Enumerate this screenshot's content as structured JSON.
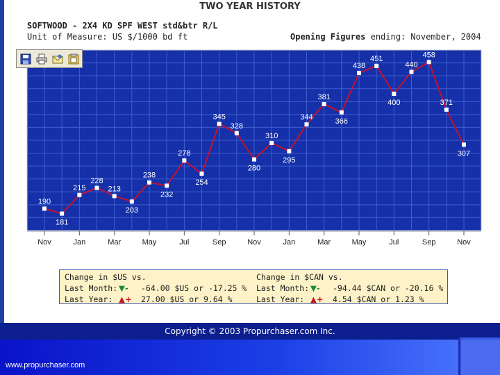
{
  "header": {
    "title": "TWO YEAR HISTORY",
    "product": "SOFTWOOD - 2X4 KD SPF WEST std&btr R/L",
    "unit": "Unit of Measure: US $/1000 bd ft",
    "opening_label": "Opening Figures",
    "opening_value": " ending: November, 2004"
  },
  "toolbar": {
    "buttons": [
      {
        "name": "save-icon"
      },
      {
        "name": "print-icon"
      },
      {
        "name": "email-icon"
      },
      {
        "name": "copy-icon"
      }
    ]
  },
  "chart_data": {
    "type": "line",
    "title": "TWO YEAR HISTORY",
    "xlabel": "",
    "ylabel": "",
    "grid": true,
    "x": [
      "Nov",
      "Dec",
      "Jan",
      "Feb",
      "Mar",
      "Apr",
      "May",
      "Jun",
      "Jul",
      "Aug",
      "Sep",
      "Oct",
      "Nov",
      "Dec",
      "Jan",
      "Feb",
      "Mar",
      "Apr",
      "May",
      "Jun",
      "Jul",
      "Aug",
      "Sep",
      "Oct",
      "Nov"
    ],
    "tick_labels": [
      "Nov",
      "Jan",
      "Mar",
      "May",
      "Jul",
      "Sep",
      "Nov",
      "Jan",
      "Mar",
      "May",
      "Jul",
      "Sep",
      "Nov"
    ],
    "series": [
      {
        "values": [
          190,
          181,
          215,
          228,
          213,
          203,
          238,
          232,
          278,
          254,
          345,
          328,
          280,
          310,
          295,
          344,
          381,
          366,
          438,
          451,
          400,
          440,
          458,
          371,
          307
        ],
        "color": "#c8102e"
      }
    ],
    "ylim": [
      150,
      480
    ],
    "colors": {
      "plot_bg": "#1530a8",
      "grid": "#3f5fcf",
      "line": "#c8102e",
      "marker": "#ffffff"
    }
  },
  "stats": {
    "us": {
      "heading": "Change in $US vs.",
      "last_month_label": "Last Month:",
      "last_month_arrow": "▼-",
      "last_month_value": "-64.00 $US or -17.25 %",
      "last_year_label": "Last Year:",
      "last_year_arrow": "▲+",
      "last_year_value": "27.00 $US or 9.64 %"
    },
    "can": {
      "heading": "Change in $CAN vs.",
      "last_month_label": "Last Month:",
      "last_month_arrow": "▼-",
      "last_month_value": "-94.44 $CAN or -20.16 %",
      "last_year_label": "Last Year:",
      "last_year_arrow": "▲+",
      "last_year_value": "4.54 $CAN or 1.23 %"
    }
  },
  "footer": {
    "copyright": "Copyright © 2003 Propurchaser.com Inc.",
    "url": "www.propurchaser.com"
  }
}
